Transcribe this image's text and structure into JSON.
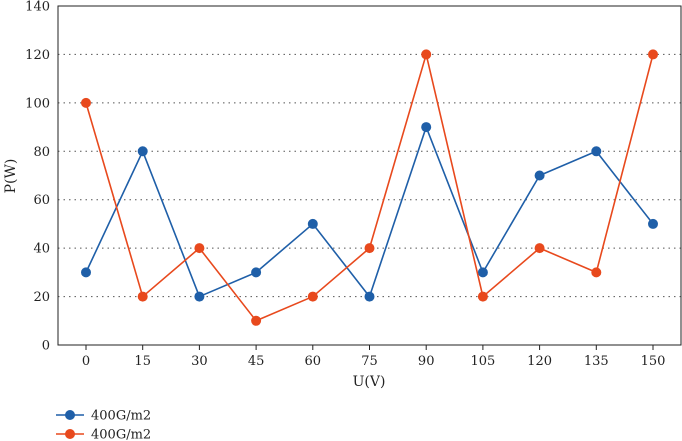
{
  "chart_data": {
    "type": "line",
    "title": "",
    "xlabel": "U(V)",
    "ylabel": "P(W)",
    "x": [
      0,
      15,
      30,
      45,
      60,
      75,
      90,
      105,
      120,
      135,
      150
    ],
    "ylim": [
      0,
      140
    ],
    "yticks": [
      0,
      20,
      40,
      60,
      80,
      100,
      120,
      140
    ],
    "grid": "horizontal dotted",
    "legend_position": "bottom-left",
    "series": [
      {
        "name": "400G/m2",
        "color": "#1f5fa8",
        "values": [
          30,
          80,
          20,
          30,
          50,
          20,
          90,
          30,
          70,
          80,
          50
        ]
      },
      {
        "name": "400G/m2",
        "color": "#e8491d",
        "values": [
          100,
          20,
          40,
          10,
          20,
          40,
          120,
          20,
          40,
          30,
          120
        ]
      }
    ]
  }
}
